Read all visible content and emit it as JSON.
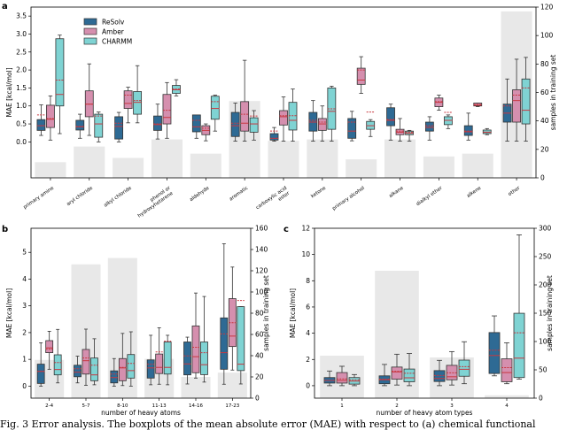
{
  "colors": {
    "ReSolv": "#2e6a94",
    "Amber": "#d58fae",
    "CHARMM": "#7fd3d3",
    "bar": "#e8e8e8",
    "median": "#c8373f",
    "mean": "#c8373f"
  },
  "caption": "Fig. 3 Error analysis. The boxplots of the mean absolute error (MAE) with respect to (a) chemical functional",
  "chart_data": [
    {
      "panel_label": "a",
      "type": "box",
      "ylabel": "MAE [kcal/mol]",
      "y2label": "samples in training set",
      "ylim": [
        -1.0,
        3.75
      ],
      "y2lim": [
        0,
        120
      ],
      "yticks": [
        "0.0",
        "0.5",
        "1.0",
        "1.5",
        "2.0",
        "2.5",
        "3.0",
        "3.5"
      ],
      "y2ticks": [
        "0",
        "20",
        "40",
        "60",
        "80",
        "100",
        "120"
      ],
      "legend": [
        "ReSolv",
        "Amber",
        "CHARMM"
      ],
      "legend_position": "top-left",
      "categories": [
        "primary amine",
        "aryl chloride",
        "alkyl chloride",
        "phenol or hydroxyhetarene",
        "aldehyde",
        "aromatic",
        "carboxylic acid ester",
        "ketone",
        "primary alcohol",
        "alkane",
        "dialkyl ether",
        "alkene",
        "other"
      ],
      "samples": [
        11,
        22,
        14,
        27,
        17,
        54,
        26,
        27,
        13,
        27,
        15,
        17,
        117
      ],
      "series": [
        {
          "name": "ReSolv",
          "boxes": [
            [
              0.18,
              0.32,
              0.45,
              0.62,
              1.03,
              0.75
            ],
            [
              0.1,
              0.33,
              0.42,
              0.6,
              0.77,
              0.43
            ],
            [
              0.0,
              0.08,
              0.43,
              0.7,
              0.82,
              0.52
            ],
            [
              0.08,
              0.32,
              0.48,
              0.72,
              1.05,
              0.5
            ],
            [
              0.1,
              0.28,
              0.42,
              0.75,
              0.75,
              0.6
            ],
            [
              0.02,
              0.15,
              0.45,
              0.82,
              1.08,
              0.52
            ],
            [
              0.02,
              0.05,
              0.1,
              0.23,
              0.4,
              0.3
            ],
            [
              0.02,
              0.3,
              0.55,
              0.82,
              1.15,
              0.6
            ],
            [
              0.03,
              0.1,
              0.3,
              0.65,
              0.85,
              0.55
            ],
            [
              0.05,
              0.45,
              0.6,
              0.95,
              1.05,
              0.62
            ],
            [
              0.05,
              0.3,
              0.4,
              0.55,
              0.7,
              0.45
            ],
            [
              0.05,
              0.18,
              0.28,
              0.45,
              0.8,
              0.3
            ],
            [
              0.02,
              0.55,
              0.8,
              1.05,
              1.75,
              1.0
            ]
          ]
        },
        {
          "name": "Amber",
          "boxes": [
            [
              0.05,
              0.4,
              0.63,
              1.02,
              1.28,
              0.65
            ],
            [
              0.18,
              0.7,
              1.05,
              1.42,
              2.17,
              1.05
            ],
            [
              0.53,
              0.93,
              1.07,
              1.42,
              1.52,
              1.3
            ],
            [
              0.1,
              0.5,
              0.68,
              1.32,
              1.65,
              0.88
            ],
            [
              0.03,
              0.2,
              0.32,
              0.45,
              0.5,
              0.38
            ],
            [
              0.02,
              0.3,
              0.52,
              1.12,
              2.27,
              0.77
            ],
            [
              0.02,
              0.47,
              0.7,
              0.87,
              1.25,
              0.73
            ],
            [
              0.02,
              0.32,
              0.5,
              0.65,
              1.0,
              0.55
            ],
            [
              1.35,
              1.6,
              1.72,
              2.05,
              2.37,
              2.0
            ],
            [
              0.02,
              0.2,
              0.27,
              0.35,
              0.65,
              0.3
            ],
            [
              0.88,
              0.98,
              1.1,
              1.22,
              1.3,
              1.12
            ],
            [
              0.98,
              1.0,
              1.02,
              1.08,
              1.08,
              1.04
            ],
            [
              0.02,
              0.55,
              1.15,
              1.45,
              2.3,
              1.3
            ]
          ]
        },
        {
          "name": "CHARMM",
          "boxes": [
            [
              0.23,
              1.0,
              1.32,
              2.87,
              2.97,
              1.72
            ],
            [
              0.0,
              0.13,
              0.5,
              0.77,
              0.83,
              0.72
            ],
            [
              0.53,
              0.77,
              1.1,
              1.4,
              2.12,
              1.15
            ],
            [
              1.28,
              1.35,
              1.45,
              1.57,
              1.73,
              1.47
            ],
            [
              0.3,
              0.63,
              0.93,
              1.27,
              1.3,
              1.12
            ],
            [
              0.05,
              0.27,
              0.5,
              0.67,
              0.87,
              0.72
            ],
            [
              0.02,
              0.33,
              0.6,
              1.1,
              1.47,
              0.73
            ],
            [
              0.02,
              0.35,
              0.85,
              1.5,
              1.55,
              0.92
            ],
            [
              0.15,
              0.35,
              0.45,
              0.57,
              0.62,
              0.83
            ],
            [
              0.02,
              0.2,
              0.24,
              0.3,
              0.32,
              0.27
            ],
            [
              0.37,
              0.48,
              0.6,
              0.7,
              0.75,
              0.82
            ],
            [
              0.2,
              0.23,
              0.27,
              0.33,
              0.37,
              0.27
            ],
            [
              0.02,
              0.5,
              0.88,
              1.75,
              2.35,
              1.5
            ]
          ]
        }
      ]
    },
    {
      "panel_label": "b",
      "type": "box",
      "xlabel": "number of heavy atoms",
      "ylabel": "MAE [kcal/mol]",
      "y2label": "samples in training set",
      "ylim": [
        -0.45,
        5.9
      ],
      "y2lim": [
        0,
        160
      ],
      "yticks": [
        "0",
        "1",
        "2",
        "3",
        "4",
        "5"
      ],
      "y2ticks": [
        "0",
        "20",
        "40",
        "60",
        "80",
        "100",
        "120",
        "140",
        "160"
      ],
      "categories": [
        "2-4",
        "5-7",
        "8-10",
        "11-13",
        "14-16",
        "17-23"
      ],
      "samples": [
        36,
        126,
        132,
        37,
        20,
        24
      ],
      "series": [
        {
          "name": "ReSolv",
          "boxes": [
            [
              0.0,
              0.1,
              0.55,
              0.82,
              1.62,
              0.55
            ],
            [
              0.12,
              0.35,
              0.52,
              0.78,
              1.12,
              0.65
            ],
            [
              0.0,
              0.12,
              0.32,
              0.57,
              1.03,
              0.45
            ],
            [
              0.05,
              0.3,
              0.68,
              0.98,
              1.9,
              0.82
            ],
            [
              0.08,
              0.42,
              0.83,
              1.65,
              1.83,
              1.13
            ],
            [
              0.07,
              0.63,
              1.25,
              2.55,
              5.32,
              1.95
            ]
          ]
        },
        {
          "name": "Amber",
          "boxes": [
            [
              0.63,
              1.25,
              1.43,
              1.7,
              2.05,
              1.38
            ],
            [
              0.03,
              0.45,
              0.95,
              1.37,
              2.13,
              1.05
            ],
            [
              0.02,
              0.2,
              0.68,
              1.03,
              1.97,
              0.7
            ],
            [
              0.07,
              0.47,
              0.7,
              1.2,
              2.18,
              1.28
            ],
            [
              0.3,
              0.5,
              1.1,
              2.25,
              3.48,
              1.45
            ],
            [
              0.6,
              1.48,
              1.87,
              3.27,
              4.45,
              2.37
            ]
          ]
        },
        {
          "name": "CHARMM",
          "boxes": [
            [
              0.12,
              0.42,
              0.62,
              1.17,
              2.12,
              0.88
            ],
            [
              0.05,
              0.2,
              0.42,
              1.05,
              1.77,
              0.78
            ],
            [
              0.0,
              0.3,
              0.58,
              1.18,
              2.03,
              0.85
            ],
            [
              0.05,
              0.45,
              0.7,
              1.65,
              1.9,
              1.68
            ],
            [
              0.15,
              0.43,
              0.8,
              1.65,
              3.35,
              1.25
            ],
            [
              0.08,
              0.58,
              0.82,
              2.97,
              2.97,
              3.2
            ]
          ]
        }
      ]
    },
    {
      "panel_label": "c",
      "type": "box",
      "xlabel": "number of heavy atom types",
      "ylabel": "MAE [kcal/mol]",
      "y2label": "samples in training set",
      "ylim": [
        -0.95,
        12
      ],
      "y2lim": [
        0,
        300
      ],
      "yticks": [
        "0",
        "2",
        "4",
        "6",
        "8",
        "10"
      ],
      "y2ticks": [
        "0",
        "50",
        "100",
        "150",
        "200",
        "250",
        "300"
      ],
      "extra_ytick_top": "12",
      "categories": [
        "1",
        "2",
        "3",
        "4"
      ],
      "samples": [
        75,
        225,
        72,
        5
      ],
      "series": [
        {
          "name": "ReSolv",
          "boxes": [
            [
              0.0,
              0.2,
              0.4,
              0.62,
              1.12,
              0.4
            ],
            [
              0.0,
              0.15,
              0.45,
              0.75,
              1.62,
              0.5
            ],
            [
              0.0,
              0.32,
              0.55,
              1.15,
              1.93,
              0.78
            ],
            [
              0.75,
              0.93,
              2.3,
              4.05,
              5.32,
              2.7
            ]
          ]
        },
        {
          "name": "Amber",
          "boxes": [
            [
              0.0,
              0.2,
              0.4,
              1.0,
              1.48,
              0.52
            ],
            [
              0.05,
              0.5,
              1.05,
              1.42,
              2.4,
              1.1
            ],
            [
              0.05,
              0.45,
              0.68,
              1.55,
              2.6,
              0.98
            ],
            [
              0.15,
              0.3,
              1.0,
              2.05,
              3.27,
              1.38
            ]
          ]
        },
        {
          "name": "CHARMM",
          "boxes": [
            [
              0.0,
              0.12,
              0.35,
              0.62,
              0.85,
              0.45
            ],
            [
              0.0,
              0.3,
              0.6,
              1.27,
              2.45,
              0.95
            ],
            [
              0.15,
              0.72,
              1.25,
              1.95,
              3.35,
              1.45
            ],
            [
              0.5,
              0.62,
              2.1,
              5.52,
              11.5,
              4.03
            ]
          ]
        }
      ]
    }
  ]
}
